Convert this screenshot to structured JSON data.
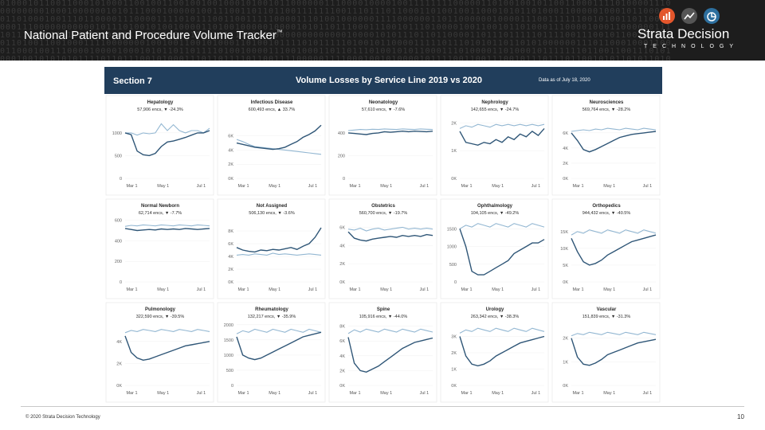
{
  "header": {
    "title": "National Patient and Procedure Volume Tracker",
    "trademark": "™",
    "brand_name": "Strata Decision",
    "brand_sub": "TECHNOLOGY",
    "colors": {
      "banner": "#1d1d1d",
      "icon_orange": "#e3562c",
      "icon_gray": "#555555",
      "icon_blue": "#2d6f9e"
    }
  },
  "dashboard": {
    "section": "Section 7",
    "title": "Volume Losses by Service Line 2019 vs 2020",
    "as_of": "Data as of July 18, 2020",
    "colors": {
      "header": "#213e5c",
      "series_2020": "#2f5677",
      "series_2019": "#93b7d2"
    }
  },
  "footer": {
    "copyright": "© 2020 Strata Decision Technology",
    "page": "10"
  },
  "chart_data": [
    {
      "type": "line",
      "title": "Hepatology",
      "subtitle": "57,906 encs, ▼ -24.3%",
      "ylabel": "",
      "yticks": [
        "1000",
        "500",
        "0"
      ],
      "tickvals": [
        1000,
        500,
        0
      ],
      "ylim": [
        0,
        1400
      ],
      "x_ticks": [
        "Mar 1",
        "May 1",
        "Jul 1"
      ],
      "series": [
        {
          "values": [
            1000,
            1000,
            950,
            1000,
            980,
            1000,
            1200,
            1050,
            1180,
            1050,
            1000,
            1050,
            1050,
            1000,
            1100
          ]
        },
        {
          "values": [
            1000,
            960,
            600,
            520,
            500,
            550,
            700,
            800,
            820,
            860,
            900,
            950,
            1000,
            1000,
            1050
          ]
        }
      ]
    },
    {
      "type": "line",
      "title": "Infectious Disease",
      "subtitle": "600,493 encs, ▲ 33.7%",
      "ylabel": "",
      "yticks": [
        "6K",
        "4K",
        "2K",
        "0K"
      ],
      "tickvals": [
        6000,
        4000,
        2000,
        0
      ],
      "ylim": [
        0,
        9000
      ],
      "x_ticks": [
        "Mar 1",
        "May 1",
        "Jul 1"
      ],
      "series": [
        {
          "values": [
            5500,
            5200,
            4800,
            4500,
            4400,
            4300,
            4200,
            4100,
            4000,
            3900,
            3800,
            3700,
            3600,
            3500,
            3400
          ]
        },
        {
          "values": [
            5000,
            4800,
            4600,
            4400,
            4300,
            4200,
            4100,
            4200,
            4400,
            4800,
            5200,
            5800,
            6200,
            6700,
            7500
          ]
        }
      ]
    },
    {
      "type": "line",
      "title": "Neonatology",
      "subtitle": "57,610 encs, ▼ -7.6%",
      "ylabel": "",
      "yticks": [
        "400",
        "200",
        "0"
      ],
      "tickvals": [
        400,
        200,
        0
      ],
      "ylim": [
        0,
        560
      ],
      "x_ticks": [
        "Mar 1",
        "May 1",
        "Jul 1"
      ],
      "series": [
        {
          "values": [
            420,
            425,
            430,
            428,
            432,
            430,
            435,
            432,
            430,
            435,
            432,
            430,
            435,
            432,
            430
          ]
        },
        {
          "values": [
            400,
            395,
            390,
            385,
            395,
            400,
            410,
            405,
            410,
            415,
            410,
            415,
            412,
            410,
            415
          ]
        }
      ]
    },
    {
      "type": "line",
      "title": "Nephrology",
      "subtitle": "142,655 encs, ▼ -24.7%",
      "ylabel": "",
      "yticks": [
        "2K",
        "1K",
        "0K"
      ],
      "tickvals": [
        2000,
        1000,
        0
      ],
      "ylim": [
        0,
        2300
      ],
      "x_ticks": [
        "Mar 1",
        "May 1",
        "Jul 1"
      ],
      "series": [
        {
          "values": [
            1800,
            1900,
            1850,
            1950,
            1900,
            1850,
            1950,
            1900,
            1950,
            1900,
            1950,
            1900,
            1950,
            1900,
            1950
          ]
        },
        {
          "values": [
            1700,
            1300,
            1250,
            1200,
            1300,
            1250,
            1400,
            1300,
            1500,
            1400,
            1600,
            1500,
            1700,
            1550,
            1800
          ]
        }
      ]
    },
    {
      "type": "line",
      "title": "Neurosciences",
      "subtitle": "569,764 encs, ▼ -28.2%",
      "ylabel": "",
      "yticks": [
        "6K",
        "4K",
        "2K",
        "0K"
      ],
      "tickvals": [
        6000,
        4000,
        2000,
        0
      ],
      "ylim": [
        0,
        8400
      ],
      "x_ticks": [
        "Mar 1",
        "May 1",
        "Jul 1"
      ],
      "series": [
        {
          "values": [
            6200,
            6300,
            6400,
            6300,
            6500,
            6400,
            6600,
            6500,
            6400,
            6600,
            6500,
            6400,
            6600,
            6500,
            6400
          ]
        },
        {
          "values": [
            6000,
            5000,
            3800,
            3500,
            3800,
            4200,
            4600,
            5000,
            5400,
            5600,
            5800,
            5900,
            6000,
            6100,
            6200
          ]
        }
      ]
    },
    {
      "type": "line",
      "title": "Normal Newborn",
      "subtitle": "62,714 encs, ▼ -7.7%",
      "ylabel": "",
      "yticks": [
        "600",
        "400",
        "200",
        "0"
      ],
      "tickvals": [
        600,
        400,
        200,
        0
      ],
      "ylim": [
        0,
        620
      ],
      "x_ticks": [
        "Mar 1",
        "May 1",
        "Jul 1"
      ],
      "series": [
        {
          "values": [
            540,
            550,
            545,
            555,
            550,
            545,
            555,
            550,
            545,
            555,
            550,
            545,
            555,
            550,
            545
          ]
        },
        {
          "values": [
            520,
            510,
            500,
            505,
            510,
            505,
            515,
            510,
            515,
            510,
            520,
            515,
            510,
            515,
            520
          ]
        }
      ]
    },
    {
      "type": "line",
      "title": "Not Assigned",
      "subtitle": "506,130 encs, ▼ -3.6%",
      "ylabel": "",
      "yticks": [
        "8K",
        "6K",
        "4K",
        "2K",
        "0K"
      ],
      "tickvals": [
        8000,
        6000,
        4000,
        2000,
        0
      ],
      "ylim": [
        0,
        10000
      ],
      "x_ticks": [
        "Mar 1",
        "May 1",
        "Jul 1"
      ],
      "series": [
        {
          "values": [
            4200,
            4300,
            4200,
            4400,
            4300,
            4200,
            4500,
            4300,
            4400,
            4300,
            4200,
            4300,
            4400,
            4300,
            4200
          ]
        },
        {
          "values": [
            5400,
            5000,
            4800,
            4700,
            5000,
            4900,
            5100,
            5000,
            5200,
            5400,
            5100,
            5600,
            6000,
            7000,
            8500
          ]
        }
      ]
    },
    {
      "type": "line",
      "title": "Obstetrics",
      "subtitle": "560,700 encs, ▼ -19.7%",
      "ylabel": "",
      "yticks": [
        "6K",
        "4K",
        "2K",
        "0K"
      ],
      "tickvals": [
        6000,
        4000,
        2000,
        0
      ],
      "ylim": [
        0,
        7000
      ],
      "x_ticks": [
        "Mar 1",
        "May 1",
        "Jul 1"
      ],
      "series": [
        {
          "values": [
            5800,
            5700,
            5900,
            5600,
            5800,
            5900,
            5700,
            5800,
            5900,
            6000,
            5800,
            5900,
            5800,
            5900,
            5800
          ]
        },
        {
          "values": [
            5500,
            4800,
            4600,
            4500,
            4700,
            4800,
            4900,
            5000,
            4900,
            5100,
            5000,
            5100,
            5000,
            5200,
            5100
          ]
        }
      ]
    },
    {
      "type": "line",
      "title": "Ophthalmology",
      "subtitle": "104,105 encs, ▼ -49.2%",
      "ylabel": "",
      "yticks": [
        "1500",
        "1000",
        "500",
        "0"
      ],
      "tickvals": [
        1500,
        1000,
        500,
        0
      ],
      "ylim": [
        0,
        1800
      ],
      "x_ticks": [
        "Mar 1",
        "May 1",
        "Jul 1"
      ],
      "series": [
        {
          "values": [
            1500,
            1600,
            1550,
            1650,
            1600,
            1550,
            1650,
            1600,
            1550,
            1650,
            1600,
            1550,
            1650,
            1600,
            1550
          ]
        },
        {
          "values": [
            1500,
            1000,
            300,
            200,
            200,
            300,
            400,
            500,
            600,
            800,
            900,
            1000,
            1100,
            1100,
            1200
          ]
        }
      ]
    },
    {
      "type": "line",
      "title": "Orthopedics",
      "subtitle": "944,432 encs, ▼ -40.5%",
      "ylabel": "",
      "yticks": [
        "15K",
        "10K",
        "5K",
        "0K"
      ],
      "tickvals": [
        15000,
        10000,
        5000,
        0
      ],
      "ylim": [
        0,
        19000
      ],
      "x_ticks": [
        "Mar 1",
        "May 1",
        "Jul 1"
      ],
      "series": [
        {
          "values": [
            14000,
            15000,
            14500,
            15500,
            15000,
            14500,
            15500,
            15000,
            14500,
            15500,
            15000,
            14500,
            15500,
            15000,
            14500
          ]
        },
        {
          "values": [
            13000,
            9000,
            6000,
            5000,
            5500,
            6500,
            8000,
            9000,
            10000,
            11000,
            12000,
            12500,
            13000,
            13500,
            14000
          ]
        }
      ]
    },
    {
      "type": "line",
      "title": "Pulmonology",
      "subtitle": "322,590 encs, ▼ -39.5%",
      "ylabel": "",
      "yticks": [
        "4K",
        "2K",
        "0K"
      ],
      "tickvals": [
        4000,
        2000,
        0
      ],
      "ylim": [
        0,
        5800
      ],
      "x_ticks": [
        "Mar 1",
        "May 1",
        "Jul 1"
      ],
      "series": [
        {
          "values": [
            4800,
            5000,
            4900,
            5100,
            5000,
            4900,
            5100,
            5000,
            4900,
            5100,
            5000,
            4900,
            5100,
            5000,
            4900
          ]
        },
        {
          "values": [
            4500,
            3000,
            2500,
            2300,
            2400,
            2600,
            2800,
            3000,
            3200,
            3400,
            3600,
            3700,
            3800,
            3900,
            4000
          ]
        }
      ]
    },
    {
      "type": "line",
      "title": "Rheumatology",
      "subtitle": "132,217 encs, ▼ -35.9%",
      "ylabel": "",
      "yticks": [
        "2000",
        "1500",
        "1000",
        "500",
        "0"
      ],
      "tickvals": [
        2000,
        1500,
        1000,
        500,
        0
      ],
      "ylim": [
        0,
        2100
      ],
      "x_ticks": [
        "Mar 1",
        "May 1",
        "Jul 1"
      ],
      "series": [
        {
          "values": [
            1700,
            1800,
            1750,
            1850,
            1800,
            1750,
            1850,
            1800,
            1750,
            1850,
            1800,
            1750,
            1850,
            1800,
            1750
          ]
        },
        {
          "values": [
            1600,
            1000,
            900,
            850,
            900,
            1000,
            1100,
            1200,
            1300,
            1400,
            1500,
            1600,
            1650,
            1700,
            1750
          ]
        }
      ]
    },
    {
      "type": "line",
      "title": "Spine",
      "subtitle": "105,916 encs, ▼ -44.0%",
      "ylabel": "",
      "yticks": [
        "8K",
        "6K",
        "4K",
        "2K",
        "0K"
      ],
      "tickvals": [
        8000,
        6000,
        4000,
        2000,
        0
      ],
      "ylim": [
        0,
        8600
      ],
      "x_ticks": [
        "Mar 1",
        "May 1",
        "Jul 1"
      ],
      "series": [
        {
          "values": [
            7000,
            7500,
            7200,
            7600,
            7400,
            7200,
            7600,
            7400,
            7200,
            7600,
            7400,
            7200,
            7600,
            7400,
            7200
          ]
        },
        {
          "values": [
            6500,
            3000,
            2000,
            1800,
            2200,
            2600,
            3200,
            3800,
            4400,
            5000,
            5400,
            5800,
            6000,
            6200,
            6400
          ]
        }
      ]
    },
    {
      "type": "line",
      "title": "Urology",
      "subtitle": "263,342 encs, ▼ -38.3%",
      "ylabel": "",
      "yticks": [
        "3K",
        "2K",
        "1K",
        "0K"
      ],
      "tickvals": [
        3000,
        2000,
        1000,
        0
      ],
      "ylim": [
        0,
        3900
      ],
      "x_ticks": [
        "Mar 1",
        "May 1",
        "Jul 1"
      ],
      "series": [
        {
          "values": [
            3200,
            3400,
            3300,
            3500,
            3400,
            3300,
            3500,
            3400,
            3300,
            3500,
            3400,
            3300,
            3500,
            3400,
            3300
          ]
        },
        {
          "values": [
            3000,
            1800,
            1300,
            1200,
            1300,
            1500,
            1800,
            2000,
            2200,
            2400,
            2600,
            2700,
            2800,
            2900,
            3000
          ]
        }
      ]
    },
    {
      "type": "line",
      "title": "Vascular",
      "subtitle": "151,839 encs, ▼ -31.3%",
      "ylabel": "",
      "yticks": [
        "2K",
        "1K",
        "0K"
      ],
      "tickvals": [
        2000,
        1000,
        0
      ],
      "ylim": [
        0,
        2700
      ],
      "x_ticks": [
        "Mar 1",
        "May 1",
        "Jul 1"
      ],
      "series": [
        {
          "values": [
            2100,
            2200,
            2150,
            2250,
            2200,
            2150,
            2250,
            2200,
            2150,
            2250,
            2200,
            2150,
            2250,
            2200,
            2150
          ]
        },
        {
          "values": [
            2000,
            1200,
            900,
            850,
            950,
            1100,
            1300,
            1400,
            1500,
            1600,
            1700,
            1800,
            1850,
            1900,
            1950
          ]
        }
      ]
    }
  ]
}
